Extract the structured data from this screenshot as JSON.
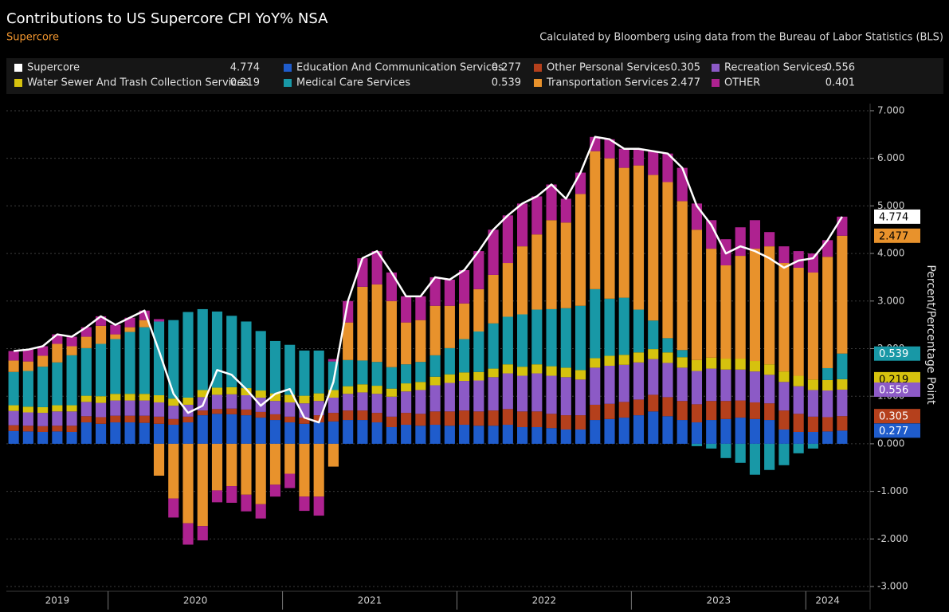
{
  "chart_data": {
    "type": "bar",
    "stacked": true,
    "title": "Contributions to US Supercore CPI YoY% NSA",
    "subtitle": "Supercore",
    "source": "Calculated by Bloomberg using data from the Bureau of Labor Statistics (BLS)",
    "y_axis_label": "Percent/Percentage Point",
    "categories": [
      "2019",
      "2019",
      "2019",
      "2019",
      "2019",
      "2019",
      "2019",
      "2020",
      "2020",
      "2020",
      "2020",
      "2020",
      "2020",
      "2020",
      "2020",
      "2020",
      "2020",
      "2020",
      "2020",
      "2021",
      "2021",
      "2021",
      "2021",
      "2021",
      "2021",
      "2021",
      "2021",
      "2021",
      "2021",
      "2021",
      "2021",
      "2022",
      "2022",
      "2022",
      "2022",
      "2022",
      "2022",
      "2022",
      "2022",
      "2022",
      "2022",
      "2022",
      "2022",
      "2023",
      "2023",
      "2023",
      "2023",
      "2023",
      "2023",
      "2023",
      "2023",
      "2023",
      "2023",
      "2023",
      "2023",
      "2024",
      "2024",
      "2024"
    ],
    "ylim": [
      -3.1,
      7.15
    ],
    "yticks": [
      {
        "value": 7,
        "label": "7.000"
      },
      {
        "value": 6,
        "label": "6.000"
      },
      {
        "value": 5,
        "label": "5.000"
      },
      {
        "value": 4,
        "label": "4.000"
      },
      {
        "value": 3,
        "label": "3.000"
      },
      {
        "value": 2,
        "label": "2.000"
      },
      {
        "value": 1,
        "label": "1.000"
      },
      {
        "value": 0,
        "label": "0.000"
      },
      {
        "value": -1,
        "label": "-1.000"
      },
      {
        "value": -2,
        "label": "-2.000"
      },
      {
        "value": -3,
        "label": "-3.000"
      }
    ],
    "grid": true,
    "series": [
      {
        "name": "Supercore",
        "type": "line",
        "color": "#ffffff",
        "values": [
          1.95,
          1.98,
          2.05,
          2.3,
          2.25,
          2.45,
          2.68,
          2.5,
          2.65,
          2.8,
          1.95,
          1.05,
          0.65,
          0.8,
          1.55,
          1.45,
          1.15,
          0.8,
          1.05,
          1.15,
          0.55,
          0.45,
          1.3,
          3.0,
          3.9,
          4.05,
          3.6,
          3.1,
          3.1,
          3.5,
          3.45,
          3.65,
          4.05,
          4.5,
          4.8,
          5.05,
          5.2,
          5.45,
          5.15,
          5.7,
          6.45,
          6.4,
          6.2,
          6.2,
          6.15,
          6.1,
          5.8,
          5.0,
          4.6,
          4.0,
          4.15,
          4.05,
          3.9,
          3.7,
          3.85,
          3.9,
          4.28,
          4.774
        ]
      },
      {
        "name": "Education And Communication Services",
        "type": "bar",
        "color": "#1f5ccc",
        "values": [
          0.27,
          0.26,
          0.25,
          0.26,
          0.25,
          0.45,
          0.42,
          0.45,
          0.45,
          0.44,
          0.42,
          0.4,
          0.45,
          0.6,
          0.63,
          0.62,
          0.6,
          0.55,
          0.5,
          0.45,
          0.42,
          0.45,
          0.47,
          0.5,
          0.5,
          0.45,
          0.35,
          0.4,
          0.38,
          0.4,
          0.38,
          0.4,
          0.38,
          0.38,
          0.4,
          0.35,
          0.35,
          0.33,
          0.3,
          0.3,
          0.5,
          0.52,
          0.55,
          0.6,
          0.68,
          0.58,
          0.5,
          0.45,
          0.5,
          0.52,
          0.55,
          0.52,
          0.5,
          0.3,
          0.25,
          0.25,
          0.26,
          0.277
        ]
      },
      {
        "name": "Other Personal Services",
        "type": "bar",
        "color": "#b5401c",
        "values": [
          0.12,
          0.12,
          0.12,
          0.12,
          0.13,
          0.13,
          0.14,
          0.14,
          0.14,
          0.15,
          0.15,
          0.12,
          0.12,
          0.1,
          0.1,
          0.12,
          0.12,
          0.12,
          0.12,
          0.12,
          0.13,
          0.15,
          0.18,
          0.2,
          0.2,
          0.2,
          0.22,
          0.25,
          0.25,
          0.28,
          0.3,
          0.3,
          0.3,
          0.32,
          0.33,
          0.33,
          0.33,
          0.3,
          0.3,
          0.3,
          0.32,
          0.32,
          0.33,
          0.33,
          0.35,
          0.4,
          0.4,
          0.38,
          0.4,
          0.38,
          0.36,
          0.35,
          0.35,
          0.4,
          0.38,
          0.32,
          0.3,
          0.305
        ]
      },
      {
        "name": "Recreation Services",
        "type": "bar",
        "color": "#8c5ac6",
        "values": [
          0.3,
          0.28,
          0.28,
          0.3,
          0.3,
          0.3,
          0.3,
          0.32,
          0.32,
          0.32,
          0.3,
          0.28,
          0.25,
          0.28,
          0.3,
          0.3,
          0.3,
          0.3,
          0.28,
          0.3,
          0.3,
          0.3,
          0.32,
          0.35,
          0.38,
          0.4,
          0.42,
          0.45,
          0.5,
          0.55,
          0.6,
          0.62,
          0.65,
          0.7,
          0.75,
          0.75,
          0.8,
          0.8,
          0.8,
          0.75,
          0.78,
          0.8,
          0.78,
          0.78,
          0.75,
          0.72,
          0.7,
          0.7,
          0.68,
          0.66,
          0.65,
          0.65,
          0.6,
          0.6,
          0.58,
          0.56,
          0.56,
          0.556
        ]
      },
      {
        "name": "Water Sewer And Trash Collection Services",
        "type": "bar",
        "color": "#d6c20e",
        "values": [
          0.12,
          0.12,
          0.12,
          0.13,
          0.13,
          0.13,
          0.14,
          0.14,
          0.14,
          0.14,
          0.15,
          0.15,
          0.15,
          0.15,
          0.15,
          0.15,
          0.15,
          0.15,
          0.16,
          0.16,
          0.16,
          0.16,
          0.16,
          0.16,
          0.17,
          0.17,
          0.17,
          0.17,
          0.17,
          0.18,
          0.18,
          0.18,
          0.18,
          0.18,
          0.19,
          0.19,
          0.19,
          0.2,
          0.2,
          0.2,
          0.2,
          0.21,
          0.21,
          0.21,
          0.21,
          0.22,
          0.22,
          0.23,
          0.23,
          0.23,
          0.23,
          0.22,
          0.22,
          0.22,
          0.22,
          0.22,
          0.22,
          0.219
        ]
      },
      {
        "name": "Medical Care Services",
        "type": "bar",
        "color": "#1898a6",
        "values": [
          0.7,
          0.75,
          0.85,
          0.9,
          1.05,
          1.0,
          1.1,
          1.15,
          1.3,
          1.4,
          1.55,
          1.65,
          1.8,
          1.7,
          1.6,
          1.5,
          1.4,
          1.25,
          1.1,
          1.05,
          0.95,
          0.9,
          0.6,
          0.55,
          0.5,
          0.5,
          0.45,
          0.4,
          0.42,
          0.45,
          0.55,
          0.7,
          0.85,
          0.95,
          1.0,
          1.1,
          1.15,
          1.2,
          1.25,
          1.35,
          1.45,
          1.2,
          1.2,
          0.9,
          0.6,
          0.3,
          0.15,
          -0.05,
          -0.1,
          -0.3,
          -0.4,
          -0.65,
          -0.55,
          -0.45,
          -0.2,
          -0.1,
          0.25,
          0.539
        ]
      },
      {
        "name": "Transportation Services",
        "type": "bar",
        "color": "#e8922c",
        "values": [
          0.24,
          0.2,
          0.23,
          0.39,
          0.19,
          0.24,
          0.38,
          0.1,
          0.1,
          0.15,
          -0.67,
          -1.15,
          -1.67,
          -1.73,
          -0.98,
          -0.89,
          -1.07,
          -1.27,
          -0.86,
          -0.63,
          -1.11,
          -1.11,
          -0.48,
          0.79,
          1.55,
          1.63,
          1.39,
          0.88,
          0.88,
          1.04,
          0.89,
          0.75,
          0.89,
          1.02,
          1.13,
          1.43,
          1.58,
          1.87,
          1.8,
          2.35,
          2.9,
          2.95,
          2.73,
          3.03,
          3.06,
          3.28,
          3.13,
          2.74,
          2.29,
          1.96,
          2.16,
          2.36,
          2.48,
          2.28,
          2.27,
          2.25,
          2.34,
          2.477
        ]
      },
      {
        "name": "OTHER",
        "type": "bar",
        "color": "#ae2290",
        "values": [
          0.2,
          0.25,
          0.2,
          0.2,
          0.2,
          0.2,
          0.2,
          0.2,
          0.2,
          0.2,
          0.05,
          -0.4,
          -0.45,
          -0.3,
          -0.25,
          -0.35,
          -0.35,
          -0.3,
          -0.25,
          -0.3,
          -0.3,
          -0.4,
          0.05,
          0.45,
          0.6,
          0.7,
          0.6,
          0.55,
          0.5,
          0.6,
          0.55,
          0.7,
          0.8,
          0.95,
          1.0,
          0.9,
          0.8,
          0.75,
          0.5,
          0.45,
          0.3,
          0.4,
          0.4,
          0.35,
          0.5,
          0.6,
          0.7,
          0.55,
          0.6,
          0.55,
          0.6,
          0.6,
          0.3,
          0.35,
          0.35,
          0.4,
          0.35,
          0.401
        ]
      }
    ]
  }
}
